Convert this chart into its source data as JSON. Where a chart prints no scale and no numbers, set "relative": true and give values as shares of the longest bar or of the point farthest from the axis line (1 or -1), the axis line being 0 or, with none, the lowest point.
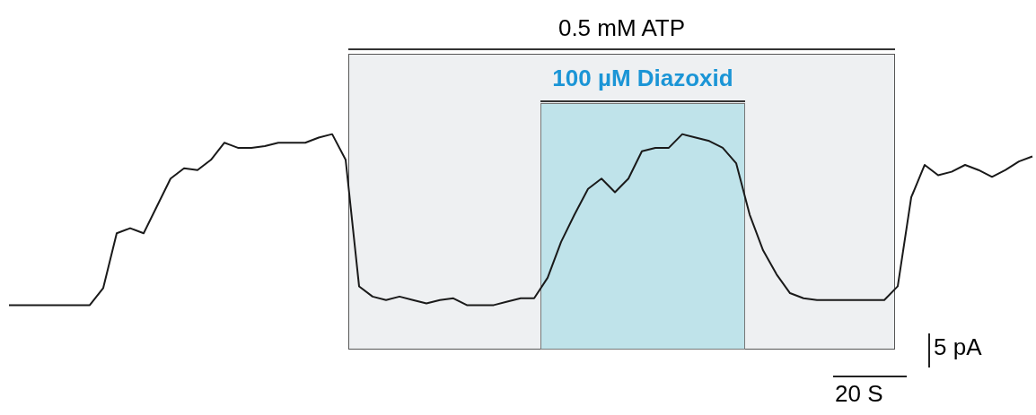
{
  "chart_data": {
    "type": "line",
    "relative": true,
    "marker": "none",
    "line_style": "solid",
    "categories": [
      null,
      null,
      null,
      null,
      null,
      null,
      null,
      null,
      null,
      null,
      null,
      null,
      null,
      null,
      null,
      null,
      null,
      null,
      null,
      null,
      null,
      null,
      null,
      null,
      null,
      null,
      null,
      null,
      null,
      null,
      null,
      null,
      null,
      null,
      null,
      null,
      null,
      null,
      null,
      null,
      null,
      null,
      null,
      null,
      null,
      null,
      null,
      null,
      null,
      null,
      null,
      null,
      null,
      null,
      null,
      null,
      null,
      null,
      null,
      null,
      null,
      null,
      null,
      null,
      null,
      null,
      null,
      null,
      null,
      null,
      null,
      null,
      null,
      null,
      null,
      null,
      null
    ],
    "series": [
      {
        "color": "#1a1a1a",
        "values": [
          0,
          0,
          0,
          0,
          0,
          0,
          0,
          0.1,
          0.42,
          0.45,
          0.42,
          0.58,
          0.74,
          0.8,
          0.79,
          0.85,
          0.95,
          0.92,
          0.92,
          0.93,
          0.95,
          0.95,
          0.95,
          0.98,
          1,
          0.85,
          0.11,
          0.05,
          0.03,
          0.05,
          0.03,
          0.01,
          0.03,
          0.04,
          0,
          0,
          0,
          0.02,
          0.04,
          0.04,
          0.16,
          0.37,
          0.53,
          0.68,
          0.74,
          0.66,
          0.74,
          0.9,
          0.92,
          0.92,
          1,
          0.98,
          0.96,
          0.92,
          0.83,
          0.53,
          0.32,
          0.18,
          0.07,
          0.04,
          0.03,
          0.03,
          0.03,
          0.03,
          0.03,
          0.03,
          0.11,
          0.63,
          0.82,
          0.76,
          0.78,
          0.82,
          0.79,
          0.75,
          0.79,
          0.84,
          0.87
        ]
      }
    ],
    "annotations": [
      "0.5 mM ATP",
      "100 µM Diazoxid",
      "5 pA",
      "20 S"
    ]
  }
}
